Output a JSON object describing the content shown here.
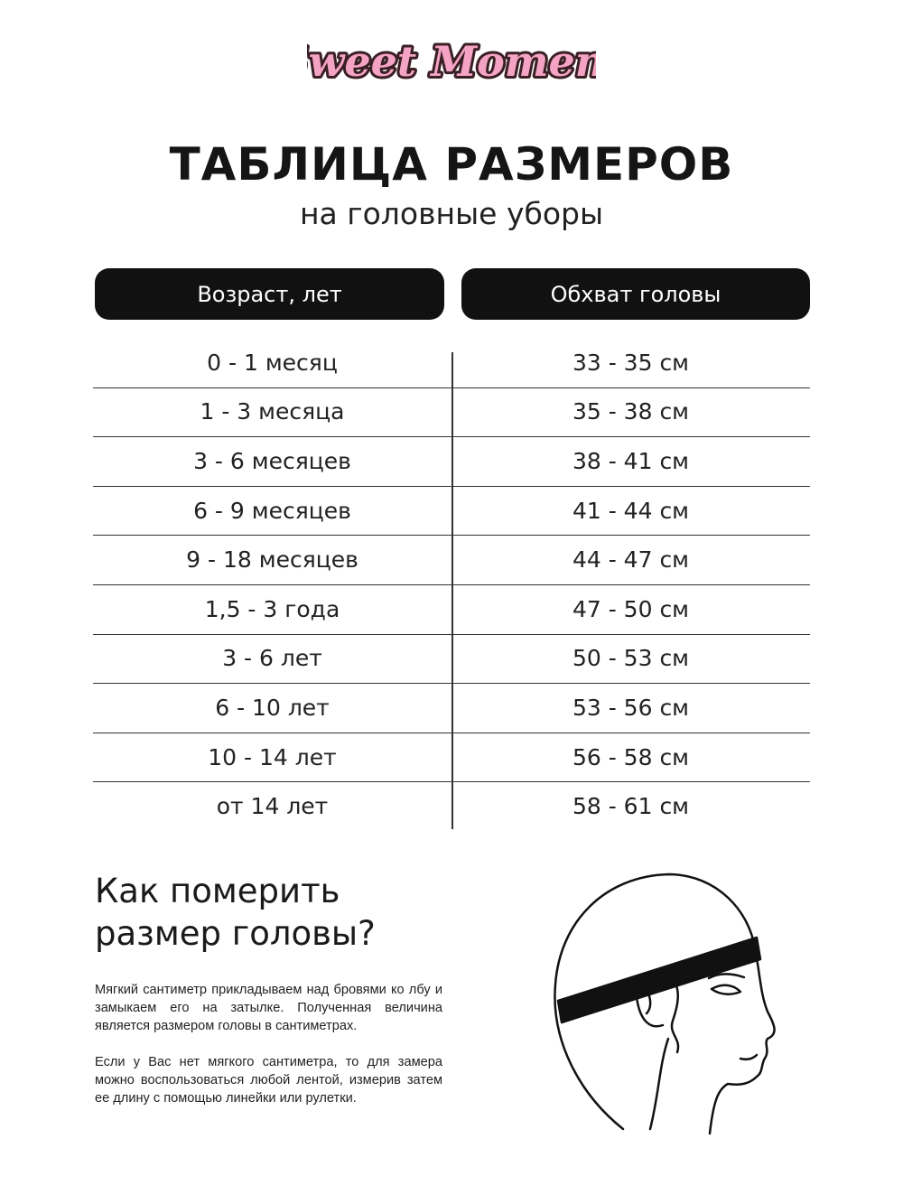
{
  "logo": {
    "text": "Sweet Moment",
    "colors": {
      "fill": "#f4a3c4",
      "outline": "#3a1f24"
    }
  },
  "title": "ТАБЛИЦА РАЗМЕРОВ",
  "subtitle": "на головные уборы",
  "table": {
    "headers": [
      "Возраст, лет",
      "Обхват головы"
    ],
    "rows": [
      [
        "0 - 1 месяц",
        "33 - 35 см"
      ],
      [
        "1 - 3 месяца",
        "35 - 38 см"
      ],
      [
        "3 - 6 месяцев",
        "38 - 41 см"
      ],
      [
        "6 - 9 месяцев",
        "41 - 44 см"
      ],
      [
        "9 - 18 месяцев",
        "44 - 47 см"
      ],
      [
        "1,5 - 3 года",
        "47 - 50 см"
      ],
      [
        "3 - 6 лет",
        "50 - 53 см"
      ],
      [
        "6 - 10 лет",
        "53 - 56 см"
      ],
      [
        "10 - 14 лет",
        "56 - 58 см"
      ],
      [
        "от 14 лет",
        "58 - 61 см"
      ]
    ]
  },
  "how": {
    "heading_line1": "Как померить",
    "heading_line2": "размер головы?",
    "paragraph1": "Мягкий сантиметр прикладываем над бровями ко лбу и замыкаем его на затылке. Полученная величина является размером головы в сантиметрах.",
    "paragraph2": "Если у Вас нет мягкого сантиметра, то для замера можно воспользоваться любой лентой, измерив затем ее длину с помощью линейки или рулетки."
  }
}
